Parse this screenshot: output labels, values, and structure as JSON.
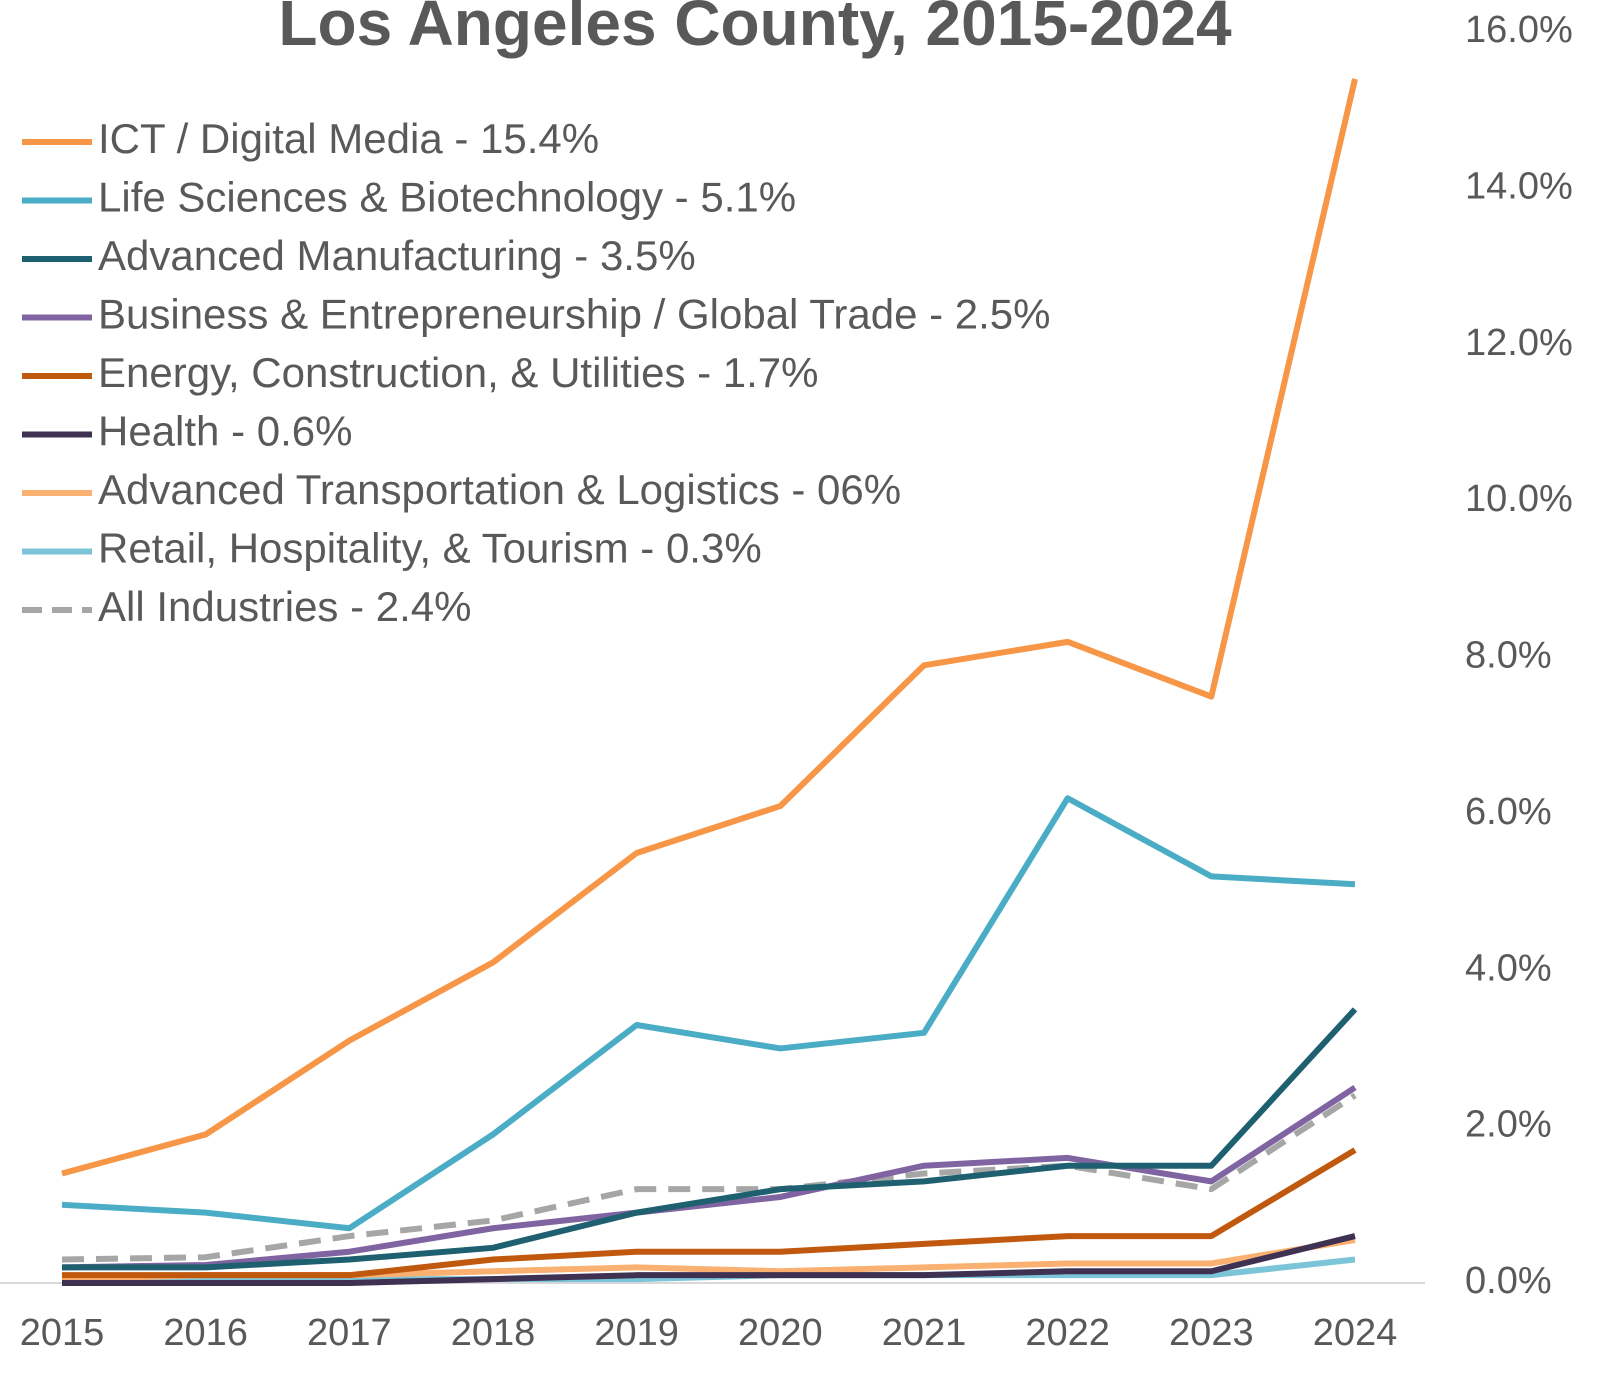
{
  "chart_data": {
    "type": "line",
    "title": "Los Angeles County, 2015-2024",
    "categories": [
      "2015",
      "2016",
      "2017",
      "2018",
      "2019",
      "2020",
      "2021",
      "2022",
      "2023",
      "2024"
    ],
    "series": [
      {
        "name": "ICT / Digital Media - 15.4%",
        "color": "#f79646",
        "values": [
          1.4,
          1.9,
          3.1,
          4.1,
          5.5,
          6.1,
          7.9,
          8.2,
          7.5,
          15.4
        ]
      },
      {
        "name": "Life Sciences & Biotechnology - 5.1%",
        "color": "#4bacc6",
        "values": [
          1.0,
          0.9,
          0.7,
          1.9,
          3.3,
          3.0,
          3.2,
          6.2,
          5.2,
          5.1
        ]
      },
      {
        "name": "Advanced Manufacturing - 3.5%",
        "color": "#1f6070",
        "values": [
          0.2,
          0.2,
          0.3,
          0.45,
          0.9,
          1.2,
          1.3,
          1.5,
          1.5,
          3.5
        ]
      },
      {
        "name": "Business & Entrepreneurship / Global Trade - 2.5%",
        "color": "#8064a2",
        "values": [
          0.2,
          0.23,
          0.4,
          0.7,
          0.9,
          1.1,
          1.5,
          1.6,
          1.3,
          2.5
        ]
      },
      {
        "name": "Energy, Construction, & Utilities - 1.7%",
        "color": "#c0580e",
        "values": [
          0.1,
          0.1,
          0.1,
          0.3,
          0.4,
          0.4,
          0.5,
          0.6,
          0.6,
          1.7
        ]
      },
      {
        "name": "Health - 0.6%",
        "color": "#3f3151",
        "values": [
          0.0,
          0.0,
          0.0,
          0.05,
          0.1,
          0.1,
          0.1,
          0.15,
          0.15,
          0.6
        ]
      },
      {
        "name": "Advanced Transportation & Logistics - 06%",
        "color": "#fab070",
        "values": [
          0.05,
          0.1,
          0.1,
          0.15,
          0.2,
          0.15,
          0.2,
          0.25,
          0.25,
          0.55
        ]
      },
      {
        "name": "Retail, Hospitality, & Tourism - 0.3%",
        "color": "#7cc5d8",
        "values": [
          0.0,
          0.05,
          0.05,
          0.05,
          0.05,
          0.1,
          0.1,
          0.1,
          0.1,
          0.3
        ]
      },
      {
        "name": "All Industries - 2.4%",
        "color": "#a6a6a6",
        "dashed": true,
        "values": [
          0.3,
          0.33,
          0.6,
          0.8,
          1.2,
          1.2,
          1.4,
          1.5,
          1.2,
          2.4
        ]
      }
    ],
    "ylim": [
      0,
      16
    ],
    "yticks": [
      {
        "value": 0,
        "label": "0.0%"
      },
      {
        "value": 2,
        "label": "2.0%"
      },
      {
        "value": 4,
        "label": "4.0%"
      },
      {
        "value": 6,
        "label": "6.0%"
      },
      {
        "value": 8,
        "label": "8.0%"
      },
      {
        "value": 10,
        "label": "10.0%"
      },
      {
        "value": 12,
        "label": "12.0%"
      },
      {
        "value": 14,
        "label": "14.0%"
      },
      {
        "value": 16,
        "label": "16.0%"
      }
    ],
    "y_axis_side": "right"
  }
}
